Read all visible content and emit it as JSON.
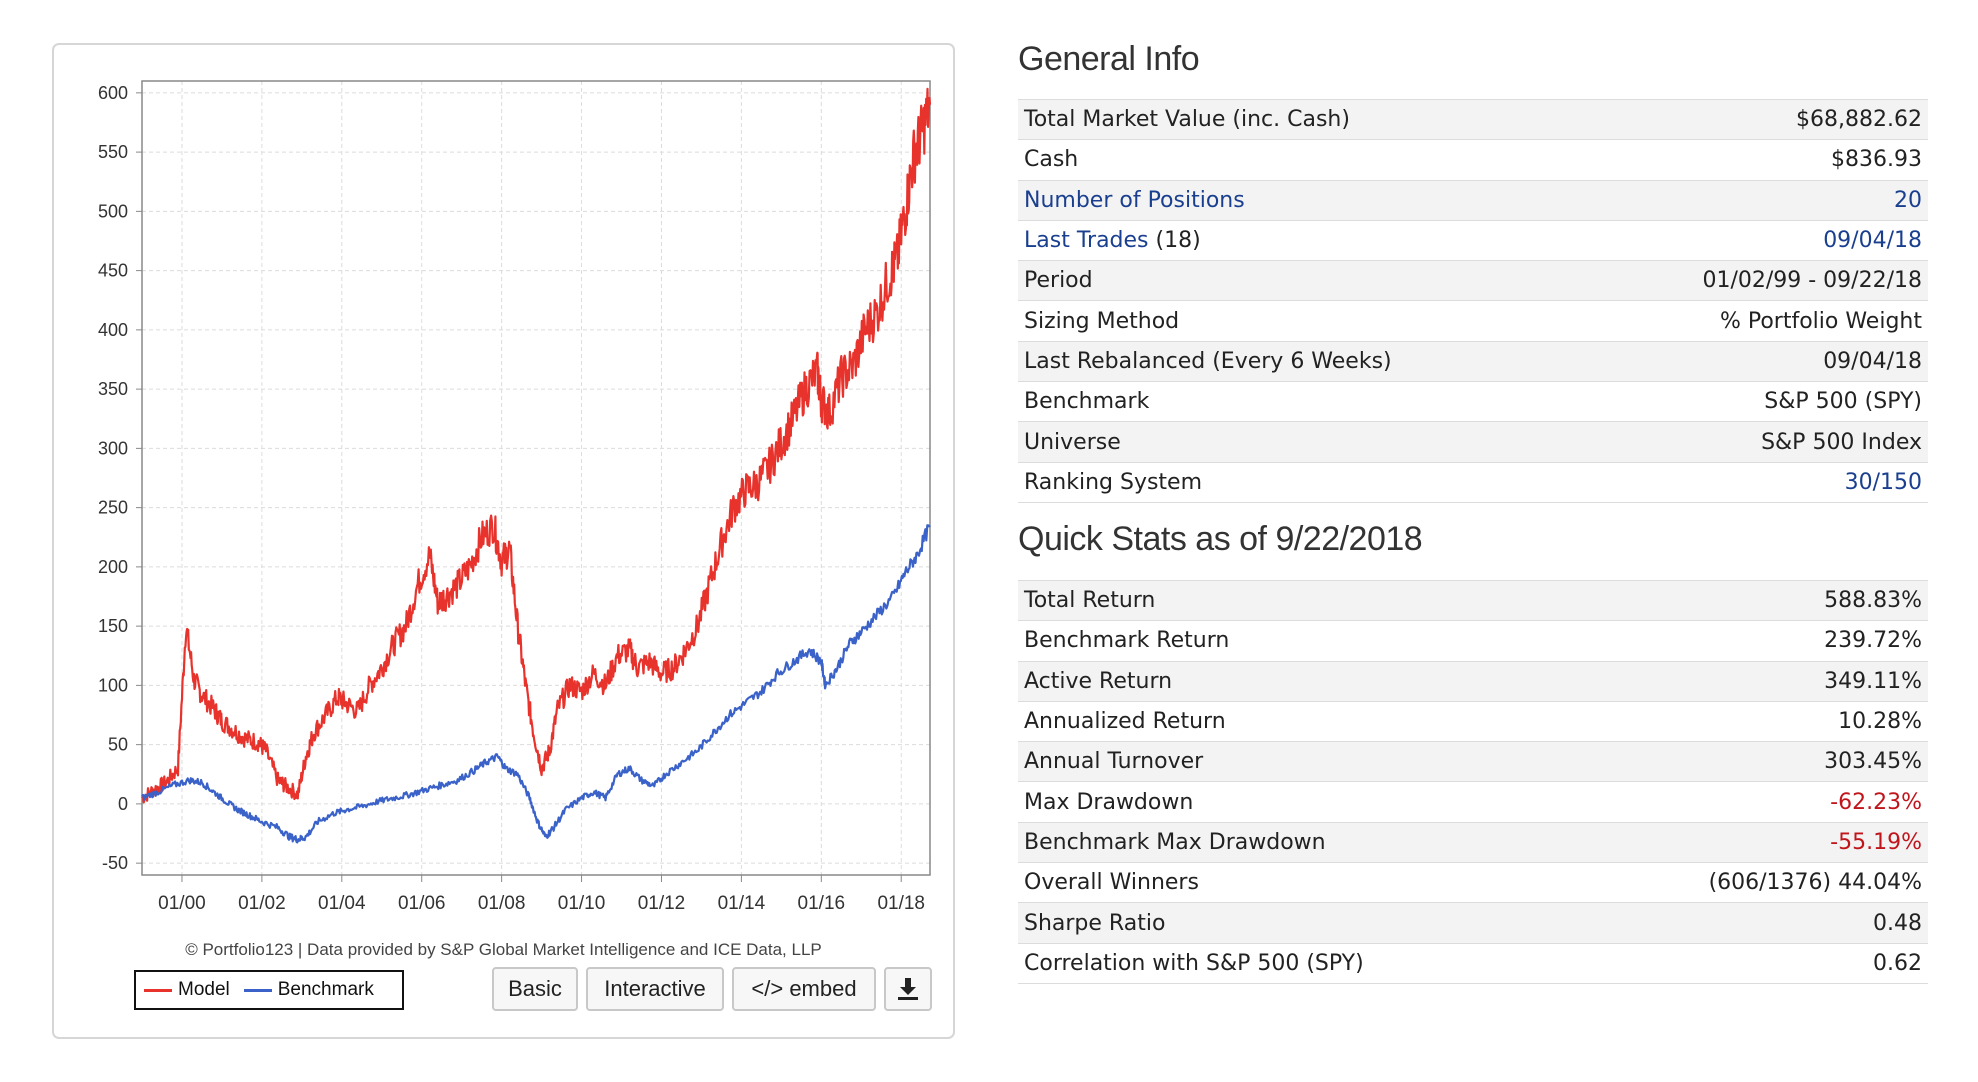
{
  "chart": {
    "credit": "© Portfolio123 | Data provided by S&P Global Market Intelligence and ICE Data, LLP",
    "legend": {
      "model_label": "Model",
      "benchmark_label": "Benchmark"
    },
    "buttons": {
      "basic": "Basic",
      "interactive": "Interactive",
      "embed": "</> embed",
      "download_icon": "download-icon"
    },
    "colors": {
      "model": "#e8322c",
      "benchmark": "#3a62c8",
      "grid": "#dedede"
    }
  },
  "chart_data": {
    "type": "line",
    "title": "",
    "xlabel": "",
    "ylabel": "",
    "xlim": [
      1999.0,
      2018.72
    ],
    "ylim": [
      -60,
      610
    ],
    "yticks": [
      -50,
      0,
      50,
      100,
      150,
      200,
      250,
      300,
      350,
      400,
      450,
      500,
      550,
      600
    ],
    "xticks": [
      {
        "x": 2000,
        "label": "01/00"
      },
      {
        "x": 2002,
        "label": "01/02"
      },
      {
        "x": 2004,
        "label": "01/04"
      },
      {
        "x": 2006,
        "label": "01/06"
      },
      {
        "x": 2008,
        "label": "01/08"
      },
      {
        "x": 2010,
        "label": "01/10"
      },
      {
        "x": 2012,
        "label": "01/12"
      },
      {
        "x": 2014,
        "label": "01/14"
      },
      {
        "x": 2016,
        "label": "01/16"
      },
      {
        "x": 2018,
        "label": "01/18"
      }
    ],
    "grid": true,
    "legend_position": "bottom-left",
    "series": [
      {
        "name": "Model",
        "color": "#e8322c",
        "x": [
          1999.0,
          1999.3,
          1999.6,
          1999.9,
          2000.1,
          2000.3,
          2000.5,
          2000.8,
          2001.0,
          2001.3,
          2001.6,
          2001.9,
          2002.1,
          2002.4,
          2002.6,
          2002.9,
          2003.1,
          2003.3,
          2003.6,
          2003.9,
          2004.1,
          2004.4,
          2004.7,
          2005.0,
          2005.3,
          2005.6,
          2005.9,
          2006.2,
          2006.4,
          2006.6,
          2006.9,
          2007.2,
          2007.5,
          2007.8,
          2008.0,
          2008.2,
          2008.4,
          2008.6,
          2008.8,
          2009.0,
          2009.2,
          2009.4,
          2009.7,
          2010.0,
          2010.3,
          2010.6,
          2010.9,
          2011.2,
          2011.4,
          2011.7,
          2012.0,
          2012.3,
          2012.6,
          2012.9,
          2013.2,
          2013.5,
          2013.8,
          2014.1,
          2014.4,
          2014.7,
          2015.0,
          2015.3,
          2015.6,
          2015.9,
          2016.0,
          2016.2,
          2016.5,
          2016.8,
          2017.1,
          2017.4,
          2017.7,
          2017.9,
          2018.1,
          2018.3,
          2018.5,
          2018.72
        ],
        "values": [
          5,
          12,
          18,
          30,
          150,
          105,
          92,
          80,
          70,
          62,
          55,
          52,
          45,
          20,
          15,
          8,
          40,
          60,
          75,
          90,
          85,
          78,
          100,
          115,
          135,
          150,
          185,
          210,
          170,
          175,
          185,
          200,
          225,
          235,
          205,
          215,
          150,
          100,
          60,
          30,
          45,
          80,
          100,
          95,
          110,
          100,
          125,
          130,
          115,
          120,
          110,
          115,
          130,
          150,
          185,
          220,
          250,
          265,
          270,
          285,
          305,
          325,
          350,
          365,
          340,
          330,
          360,
          370,
          400,
          415,
          445,
          460,
          500,
          545,
          565,
          590
        ]
      },
      {
        "name": "Benchmark",
        "color": "#3a62c8",
        "x": [
          1999.0,
          1999.4,
          1999.8,
          2000.2,
          2000.5,
          2000.8,
          2001.1,
          2001.4,
          2001.7,
          2002.0,
          2002.4,
          2002.7,
          2002.9,
          2003.1,
          2003.4,
          2003.8,
          2004.1,
          2004.5,
          2004.9,
          2005.3,
          2005.7,
          2006.1,
          2006.5,
          2006.9,
          2007.3,
          2007.6,
          2007.9,
          2008.1,
          2008.4,
          2008.7,
          2008.9,
          2009.1,
          2009.3,
          2009.6,
          2010.0,
          2010.3,
          2010.6,
          2010.9,
          2011.2,
          2011.5,
          2011.8,
          2012.1,
          2012.5,
          2012.9,
          2013.3,
          2013.7,
          2014.1,
          2014.5,
          2014.9,
          2015.3,
          2015.7,
          2016.0,
          2016.1,
          2016.4,
          2016.7,
          2017.0,
          2017.4,
          2017.8,
          2018.1,
          2018.4,
          2018.72
        ],
        "values": [
          5,
          10,
          16,
          20,
          18,
          10,
          2,
          -5,
          -10,
          -15,
          -20,
          -28,
          -30,
          -28,
          -15,
          -8,
          -5,
          -2,
          2,
          5,
          8,
          12,
          16,
          20,
          28,
          35,
          40,
          30,
          25,
          5,
          -15,
          -28,
          -20,
          -5,
          5,
          10,
          5,
          25,
          30,
          20,
          15,
          25,
          35,
          45,
          60,
          75,
          85,
          95,
          110,
          120,
          130,
          120,
          100,
          115,
          135,
          145,
          160,
          175,
          195,
          210,
          235
        ]
      }
    ]
  },
  "general_info": {
    "title": "General Info",
    "rows": [
      {
        "label": "Total Market Value (inc. Cash)",
        "value": "$68,882.62"
      },
      {
        "label": "Cash",
        "value": "$836.93"
      },
      {
        "label": "Number of Positions",
        "value": "20"
      },
      {
        "label": "Last Trades",
        "label_suffix": " (18)",
        "value": "09/04/18"
      },
      {
        "label": "Period",
        "value": "01/02/99 - 09/22/18"
      },
      {
        "label": "Sizing Method",
        "value": "% Portfolio Weight"
      },
      {
        "label": "Last Rebalanced (Every 6 Weeks)",
        "value": "09/04/18"
      },
      {
        "label": "Benchmark",
        "value": "S&P 500 (SPY)"
      },
      {
        "label": "Universe",
        "value": "S&P 500 Index"
      },
      {
        "label": "Ranking System",
        "value": "30/150"
      }
    ]
  },
  "quick_stats": {
    "title": "Quick Stats as of 9/22/2018",
    "rows": [
      {
        "label": "Total Return",
        "value": "588.83%"
      },
      {
        "label": "Benchmark Return",
        "value": "239.72%"
      },
      {
        "label": "Active Return",
        "value": "349.11%"
      },
      {
        "label": "Annualized Return",
        "value": "10.28%"
      },
      {
        "label": "Annual Turnover",
        "value": "303.45%"
      },
      {
        "label": "Max Drawdown",
        "value": "-62.23%"
      },
      {
        "label": "Benchmark Max Drawdown",
        "value": "-55.19%"
      },
      {
        "label": "Overall Winners",
        "value": "(606/1376) 44.04%"
      },
      {
        "label": "Sharpe Ratio",
        "value": "0.48"
      },
      {
        "label": "Correlation with S&P 500 (SPY)",
        "value": "0.62"
      }
    ]
  }
}
